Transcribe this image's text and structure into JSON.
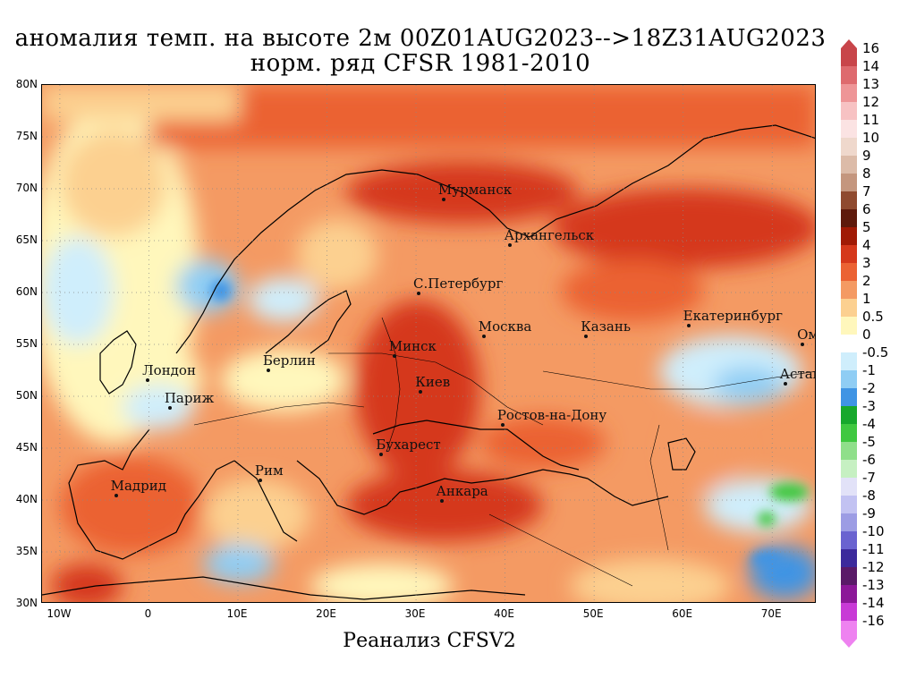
{
  "title": {
    "line1": "аномалия темп. на высоте 2м 00Z01AUG2023-->18Z31AUG2023",
    "line2": "норм. ряд CFSR 1981-2010"
  },
  "footer": "Реанализ CFSV2",
  "axes": {
    "lat_ticks": [
      "80N",
      "75N",
      "70N",
      "65N",
      "60N",
      "55N",
      "50N",
      "45N",
      "40N",
      "35N",
      "30N"
    ],
    "lon_ticks": [
      "10W",
      "0",
      "10E",
      "20E",
      "30E",
      "40E",
      "50E",
      "60E",
      "70E"
    ]
  },
  "cities": [
    {
      "name": "Мурманск",
      "lon": 33.1,
      "lat": 68.97
    },
    {
      "name": "Архангельск",
      "lon": 40.5,
      "lat": 64.54
    },
    {
      "name": "С.Петербург",
      "lon": 30.3,
      "lat": 59.94
    },
    {
      "name": "Москва",
      "lon": 37.6,
      "lat": 55.75
    },
    {
      "name": "Казань",
      "lon": 49.1,
      "lat": 55.79
    },
    {
      "name": "Екатеринбург",
      "lon": 60.6,
      "lat": 56.84
    },
    {
      "name": "Минск",
      "lon": 27.56,
      "lat": 53.9
    },
    {
      "name": "Омск",
      "lon": 73.4,
      "lat": 54.99
    },
    {
      "name": "Лондон",
      "lon": -0.13,
      "lat": 51.51
    },
    {
      "name": "Берлин",
      "lon": 13.4,
      "lat": 52.52
    },
    {
      "name": "Киев",
      "lon": 30.52,
      "lat": 50.45
    },
    {
      "name": "Астана",
      "lon": 71.45,
      "lat": 51.18
    },
    {
      "name": "Париж",
      "lon": 2.35,
      "lat": 48.86
    },
    {
      "name": "Ростов-на-Дону",
      "lon": 39.72,
      "lat": 47.24
    },
    {
      "name": "Бухарест",
      "lon": 26.1,
      "lat": 44.43
    },
    {
      "name": "Рим",
      "lon": 12.5,
      "lat": 41.9
    },
    {
      "name": "Мадрид",
      "lon": -3.7,
      "lat": 40.42
    },
    {
      "name": "Анкара",
      "lon": 32.86,
      "lat": 39.93
    }
  ],
  "colorbar": {
    "labels": [
      "16",
      "14",
      "13",
      "12",
      "11",
      "10",
      "9",
      "8",
      "7",
      "6",
      "5",
      "4",
      "3",
      "2",
      "1",
      "0.5",
      "0",
      "-0.5",
      "-1",
      "-2",
      "-3",
      "-4",
      "-5",
      "-6",
      "-7",
      "-8",
      "-9",
      "-10",
      "-11",
      "-12",
      "-13",
      "-14",
      "-16"
    ],
    "colors": [
      "#c8454a",
      "#de6a6e",
      "#ee9597",
      "#f7c2c3",
      "#fbe3e3",
      "#efd8cc",
      "#dcbba8",
      "#c4967e",
      "#8f4a2f",
      "#5e1a0c",
      "#a01a05",
      "#d5381b",
      "#eb6233",
      "#f49a63",
      "#fcd090",
      "#fff7bc",
      "#ffffff",
      "#cfeefc",
      "#8fcdf4",
      "#3f94e4",
      "#17a82c",
      "#3fc840",
      "#8fdf8a",
      "#c6f0c2",
      "#e2e2f8",
      "#c2c2f2",
      "#9c9ce4",
      "#6a63d0",
      "#3c2a9c",
      "#5a1a68",
      "#8c1898",
      "#c83ad6",
      "#ee82f0"
    ]
  },
  "field_colors": {
    "warm_strong": "#d5381b",
    "warm": "#eb6233",
    "warm_mid": "#f49a63",
    "warm_light": "#fcd090",
    "neutral": "#fff7bc",
    "cold_light": "#cfeefc",
    "cold": "#8fcdf4",
    "cold_strong": "#3f94e4",
    "green": "#3fc840"
  }
}
